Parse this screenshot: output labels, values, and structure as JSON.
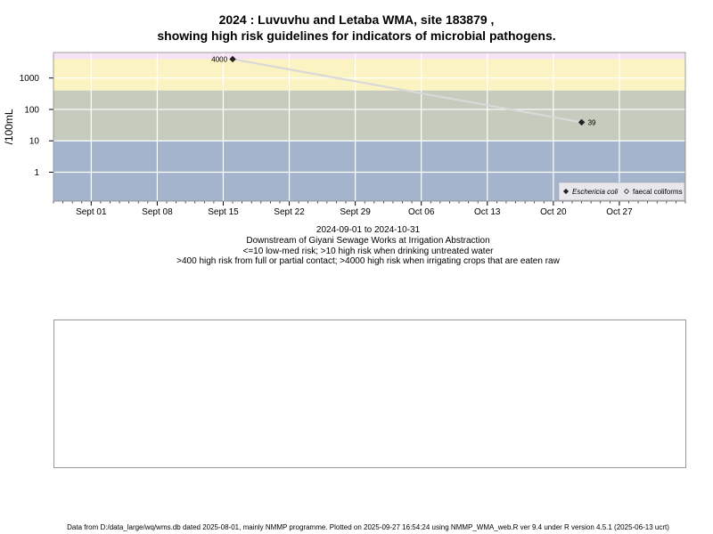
{
  "title_line1": "2024 : Luvuvhu and Letaba WMA, site 183879 ,",
  "title_line2": "showing high risk guidelines for indicators of microbial pathogens.",
  "date_range": "2024-09-01 to 2024-10-31",
  "site_description": "Downstream of Giyani Sewage Works at Irrigation Abstraction",
  "guideline_line1": "<=10 low-med risk; >10 high risk when drinking untreated water",
  "guideline_line2": ">400 high risk from full or partial contact; >4000 high risk when irrigating crops that are eaten raw",
  "footer": "Data from D:/data_large/wq/wms.db dated 2025-08-01, mainly NMMP programme. Plotted on 2025-09-27 16:54:24 using NMMP_WMA_web.R ver 9.4 under R version 4.5.1 (2025-06-13 ucrt)",
  "chart_data": {
    "type": "line",
    "ylabel": "/100mL",
    "y_scale": "log",
    "y_ticks": [
      "1",
      "10",
      "100",
      "1000"
    ],
    "y_tick_values": [
      1,
      10,
      100,
      1000
    ],
    "ylim": [
      0.12,
      6500
    ],
    "xlim": [
      "2024-08-28",
      "2024-11-03"
    ],
    "x_ticks": [
      {
        "date": "2024-09-01",
        "label": "Sept 01"
      },
      {
        "date": "2024-09-08",
        "label": "Sept 08"
      },
      {
        "date": "2024-09-15",
        "label": "Sept 15"
      },
      {
        "date": "2024-09-22",
        "label": "Sept 22"
      },
      {
        "date": "2024-09-29",
        "label": "Sept 29"
      },
      {
        "date": "2024-10-06",
        "label": "Oct 06"
      },
      {
        "date": "2024-10-13",
        "label": "Oct 13"
      },
      {
        "date": "2024-10-20",
        "label": "Oct 20"
      },
      {
        "date": "2024-10-27",
        "label": "Oct 27"
      }
    ],
    "bands": [
      {
        "from": 4000,
        "to": 6500,
        "color": "#f6e4f6"
      },
      {
        "from": 400,
        "to": 4000,
        "color": "#fbf3c2"
      },
      {
        "from": 10,
        "to": 400,
        "color": "#c5cbbd"
      },
      {
        "from": 0.12,
        "to": 10,
        "color": "#a3b4cc"
      }
    ],
    "series": [
      {
        "name": "Eschericia coli",
        "marker": "filled-diamond",
        "color": "#222222",
        "line_color": "#d9d9d9",
        "points": [
          {
            "x": "2024-09-16",
            "y": 4000,
            "label": "4000"
          },
          {
            "x": "2024-10-23",
            "y": 39,
            "label": "39"
          }
        ]
      },
      {
        "name": "faecal coliforms",
        "marker": "open-diamond",
        "color": "#222222",
        "points": []
      }
    ],
    "grid": true,
    "legend_position": "bottom-right"
  }
}
